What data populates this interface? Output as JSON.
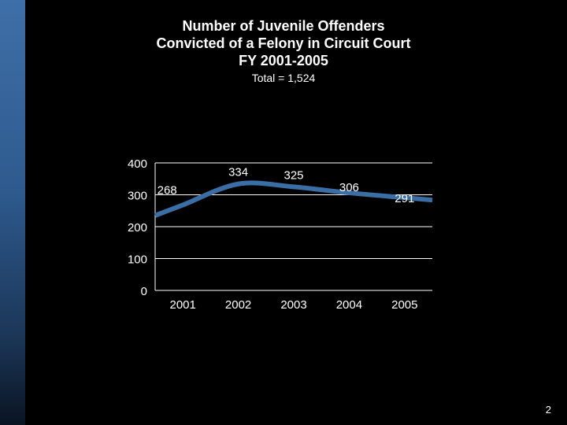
{
  "slide": {
    "title_lines": [
      "Number of Juvenile Offenders",
      "Convicted of a Felony in Circuit Court",
      "FY 2001-2005"
    ],
    "subtitle": "Total = 1,524",
    "page_number": "2"
  },
  "colors": {
    "background": "#000000",
    "accent_gradient_top": "#3f6fa8",
    "line": "#3a6ea5",
    "axis": "#ffffff",
    "text": "#ffffff"
  },
  "chart_data": {
    "type": "line",
    "title": "Number of Juvenile Offenders Convicted of a Felony in Circuit Court FY 2001-2005",
    "subtitle": "Total = 1,524",
    "categories": [
      "2001",
      "2002",
      "2003",
      "2004",
      "2005"
    ],
    "series": [
      {
        "values": [
          268,
          334,
          325,
          306,
          291
        ]
      }
    ],
    "data_labels": [
      "268",
      "334",
      "325",
      "306",
      "291"
    ],
    "y_ticks": [
      0,
      100,
      200,
      300,
      400
    ],
    "y_tick_labels": [
      "0",
      "100",
      "200",
      "300",
      "400"
    ],
    "ylim": [
      0,
      400
    ],
    "grid": true,
    "legend": "none",
    "xlabel": "",
    "ylabel": ""
  }
}
